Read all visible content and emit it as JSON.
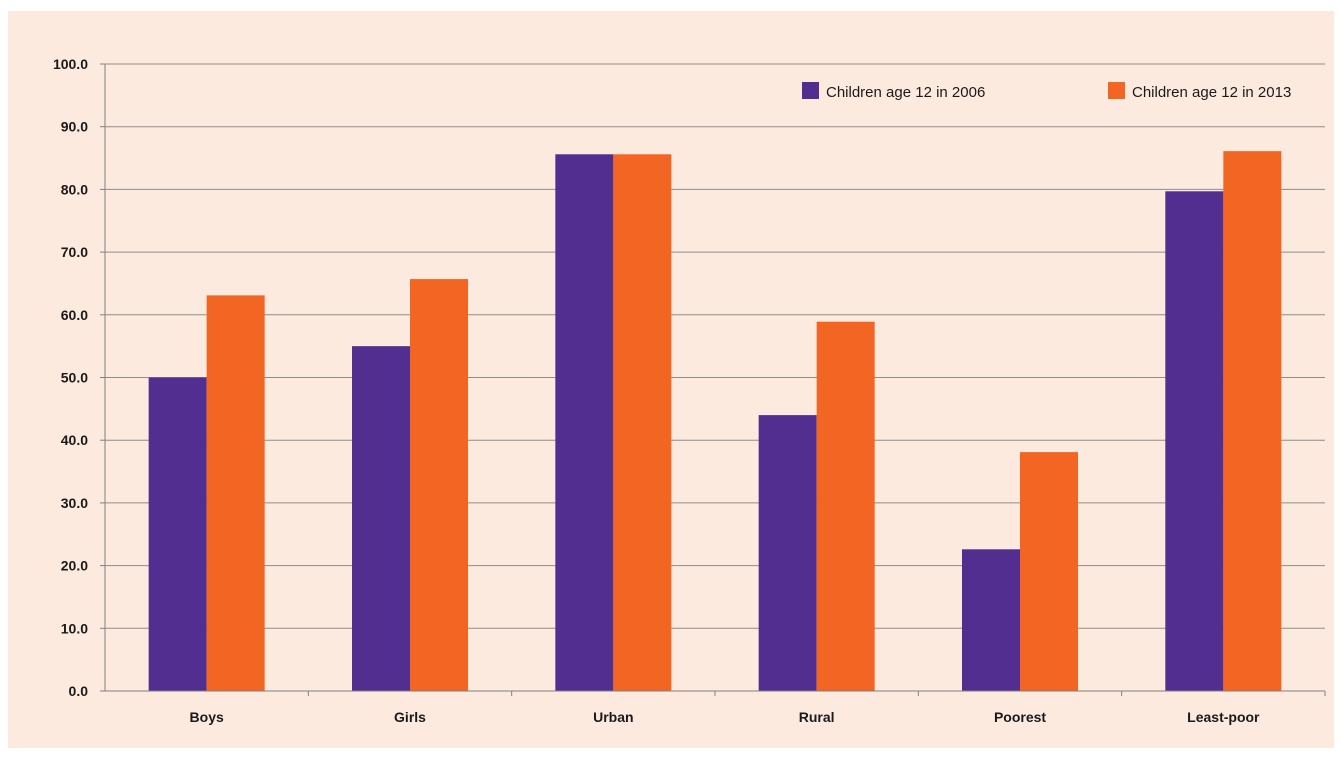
{
  "chart_data": {
    "type": "bar",
    "title": "",
    "xlabel": "",
    "ylabel": "",
    "ylim": [
      0,
      100
    ],
    "yticks": [
      "0.0",
      "10.0",
      "20.0",
      "30.0",
      "40.0",
      "50.0",
      "60.0",
      "70.0",
      "80.0",
      "90.0",
      "100.0"
    ],
    "categories": [
      "Boys",
      "Girls",
      "Urban",
      "Rural",
      "Poorest",
      "Least-poor"
    ],
    "series": [
      {
        "name": "Children age 12 in 2006",
        "color": "#522e91",
        "values": [
          50.0,
          55.0,
          85.6,
          44.0,
          22.6,
          79.7
        ]
      },
      {
        "name": "Children age 12 in 2013",
        "color": "#f26522",
        "values": [
          63.1,
          65.7,
          85.6,
          58.9,
          38.1,
          86.1
        ]
      }
    ],
    "grid": true,
    "legend_position": "top-right",
    "colors": {
      "background": "#fdeadf",
      "gridline": "#8c8c8c",
      "axis": "#808080",
      "text": "#1a1a1a"
    }
  }
}
